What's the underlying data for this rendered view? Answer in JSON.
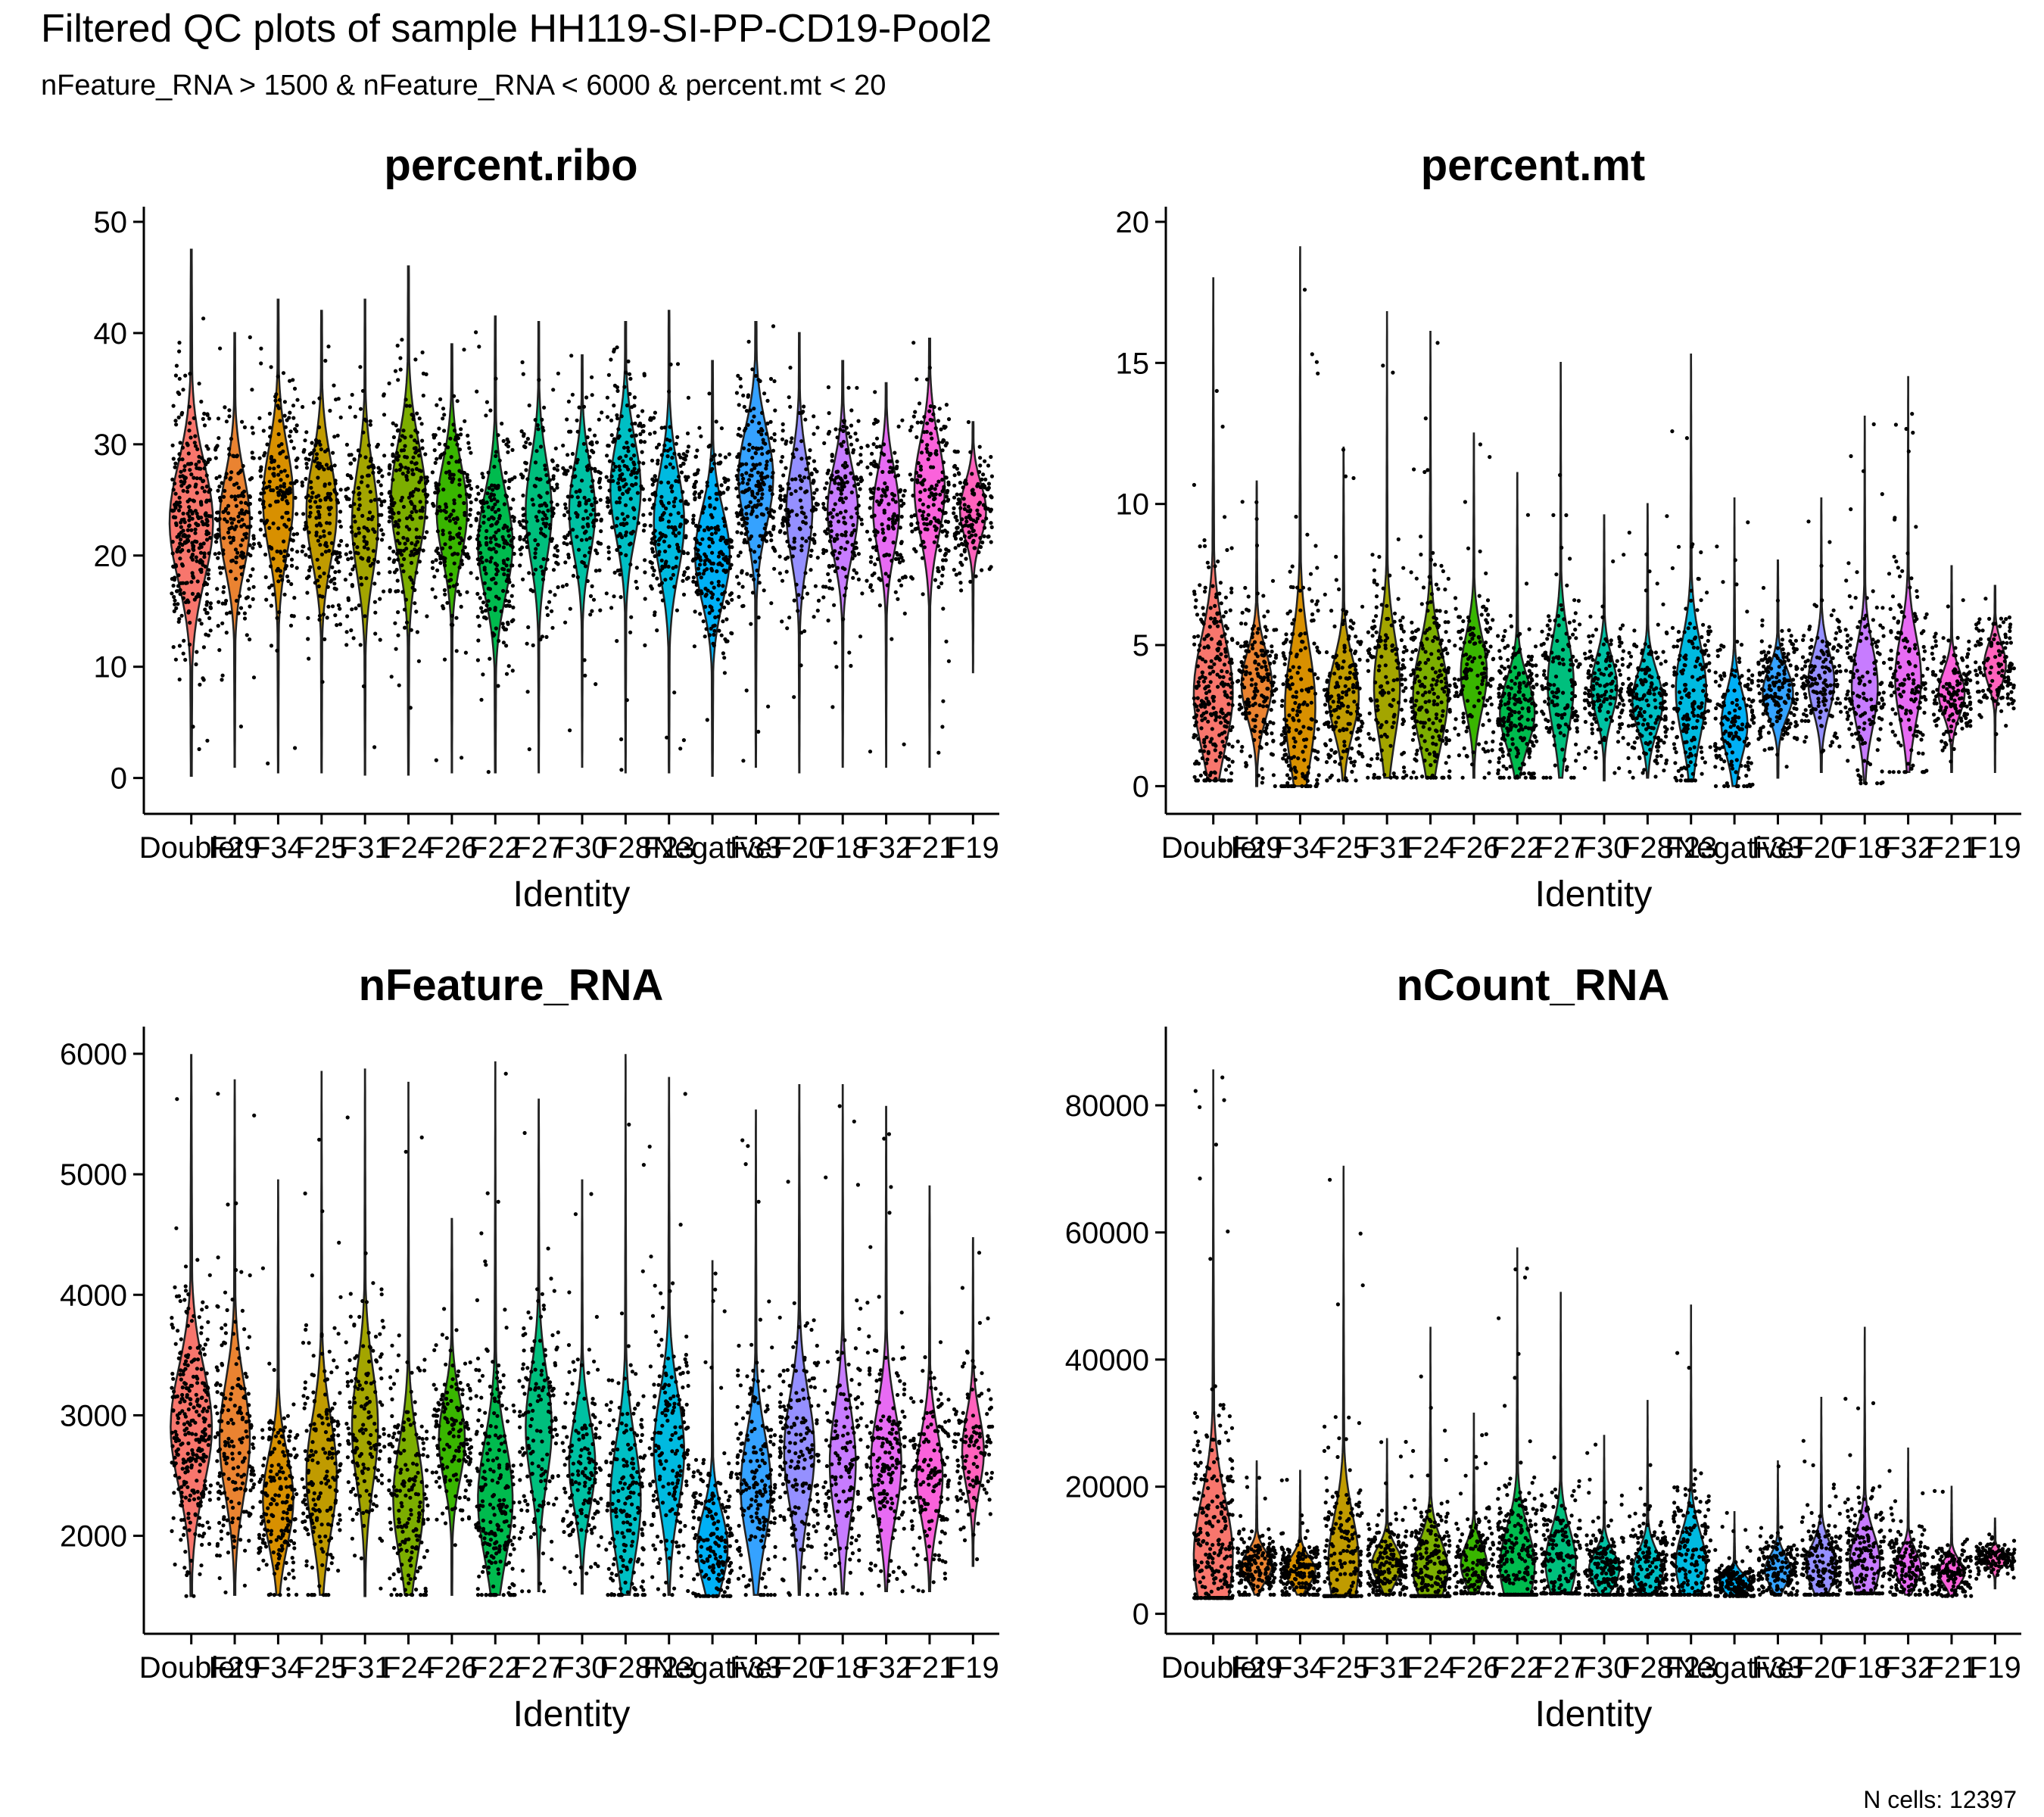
{
  "header": {
    "title": "Filtered QC plots of sample HH119-SI-PP-CD19-Pool2",
    "subtitle": "nFeature_RNA > 1500 & nFeature_RNA < 6000 & percent.mt < 20"
  },
  "footer": {
    "note": "N cells: 12397"
  },
  "colors": [
    "#F8766D",
    "#EA8331",
    "#D89000",
    "#C09B00",
    "#A3A500",
    "#7CAE00",
    "#39B600",
    "#00BB4E",
    "#00BF7D",
    "#00C1A3",
    "#00BFC4",
    "#00BAE0",
    "#00B0F6",
    "#35A2FF",
    "#9590FF",
    "#C77CFF",
    "#E76BF3",
    "#FA62DB",
    "#FF62BC"
  ],
  "chart_data": [
    {
      "type": "violin",
      "title": "percent.ribo",
      "xlabel": "Identity",
      "ylabel": "",
      "ylim": [
        -2,
        50
      ],
      "yticks": [
        0,
        10,
        20,
        30,
        40,
        50
      ],
      "categories": [
        "Doublet",
        "F29",
        "F34",
        "F25",
        "F31",
        "F24",
        "F26",
        "F22",
        "F27",
        "F30",
        "F28",
        "F23",
        "Negative",
        "F33",
        "F20",
        "F18",
        "F32",
        "F21",
        "F19"
      ],
      "series": [
        {
          "min": 0.2,
          "max": 47.5,
          "median": 23,
          "width": 1.0
        },
        {
          "min": 1.0,
          "max": 40.0,
          "median": 23,
          "width": 0.7
        },
        {
          "min": 0.5,
          "max": 43.0,
          "median": 25,
          "width": 0.7
        },
        {
          "min": 0.5,
          "max": 42.0,
          "median": 24,
          "width": 0.7
        },
        {
          "min": 0.3,
          "max": 43.0,
          "median": 23,
          "width": 0.6
        },
        {
          "min": 0.3,
          "max": 46.0,
          "median": 25,
          "width": 0.8
        },
        {
          "min": 0.5,
          "max": 39.0,
          "median": 24,
          "width": 0.7
        },
        {
          "min": 0.5,
          "max": 41.5,
          "median": 21,
          "width": 0.8
        },
        {
          "min": 0.5,
          "max": 41.0,
          "median": 24,
          "width": 0.6
        },
        {
          "min": 1.0,
          "max": 38.0,
          "median": 24,
          "width": 0.6
        },
        {
          "min": 0.5,
          "max": 41.0,
          "median": 26,
          "width": 0.7
        },
        {
          "min": 0.5,
          "max": 42.0,
          "median": 23,
          "width": 0.7
        },
        {
          "min": 0.2,
          "max": 37.5,
          "median": 20,
          "width": 0.8
        },
        {
          "min": 1.0,
          "max": 41.0,
          "median": 27,
          "width": 0.8
        },
        {
          "min": 0.5,
          "max": 40.0,
          "median": 24,
          "width": 0.6
        },
        {
          "min": 1.0,
          "max": 37.5,
          "median": 24,
          "width": 0.7
        },
        {
          "min": 1.0,
          "max": 35.5,
          "median": 24,
          "width": 0.6
        },
        {
          "min": 1.0,
          "max": 39.5,
          "median": 26,
          "width": 0.7
        },
        {
          "min": 9.5,
          "max": 32.0,
          "median": 24,
          "width": 0.6
        }
      ]
    },
    {
      "type": "violin",
      "title": "percent.mt",
      "xlabel": "Identity",
      "ylabel": "",
      "ylim": [
        -0.5,
        20
      ],
      "yticks": [
        0,
        5,
        10,
        15,
        20
      ],
      "categories": [
        "Doublet",
        "F29",
        "F34",
        "F25",
        "F31",
        "F24",
        "F26",
        "F22",
        "F27",
        "F30",
        "F28",
        "F23",
        "Negative",
        "F33",
        "F20",
        "F18",
        "F32",
        "F21",
        "F19"
      ],
      "series": [
        {
          "min": 0.2,
          "max": 18.0,
          "median": 3.3,
          "width": 0.9
        },
        {
          "min": 0.0,
          "max": 10.8,
          "median": 3.6,
          "width": 0.7
        },
        {
          "min": 0.0,
          "max": 19.1,
          "median": 2.8,
          "width": 0.7
        },
        {
          "min": 0.2,
          "max": 12.0,
          "median": 3.2,
          "width": 0.7
        },
        {
          "min": 0.3,
          "max": 16.8,
          "median": 3.5,
          "width": 0.6
        },
        {
          "min": 0.3,
          "max": 16.1,
          "median": 3.2,
          "width": 0.8
        },
        {
          "min": 0.3,
          "max": 12.5,
          "median": 4.0,
          "width": 0.6
        },
        {
          "min": 0.3,
          "max": 11.1,
          "median": 2.6,
          "width": 0.8
        },
        {
          "min": 0.3,
          "max": 15.0,
          "median": 3.6,
          "width": 0.6
        },
        {
          "min": 0.2,
          "max": 9.6,
          "median": 3.5,
          "width": 0.6
        },
        {
          "min": 0.3,
          "max": 10.0,
          "median": 3.0,
          "width": 0.7
        },
        {
          "min": 0.2,
          "max": 15.3,
          "median": 3.4,
          "width": 0.7
        },
        {
          "min": 0.0,
          "max": 10.2,
          "median": 2.2,
          "width": 0.6
        },
        {
          "min": 0.3,
          "max": 8.0,
          "median": 3.3,
          "width": 0.7
        },
        {
          "min": 0.5,
          "max": 10.2,
          "median": 3.7,
          "width": 0.6
        },
        {
          "min": 0.1,
          "max": 13.1,
          "median": 3.5,
          "width": 0.6
        },
        {
          "min": 0.5,
          "max": 14.5,
          "median": 3.8,
          "width": 0.6
        },
        {
          "min": 0.5,
          "max": 7.8,
          "median": 3.3,
          "width": 0.6
        },
        {
          "min": 0.5,
          "max": 7.1,
          "median": 4.3,
          "width": 0.5
        }
      ]
    },
    {
      "type": "violin",
      "title": "nFeature_RNA",
      "xlabel": "Identity",
      "ylabel": "",
      "ylim": [
        1300,
        6100
      ],
      "yticks": [
        2000,
        3000,
        4000,
        5000,
        6000
      ],
      "categories": [
        "Doublet",
        "F29",
        "F34",
        "F25",
        "F31",
        "F24",
        "F26",
        "F22",
        "F27",
        "F30",
        "F28",
        "F23",
        "Negative",
        "F33",
        "F20",
        "F18",
        "F32",
        "F21",
        "F19"
      ],
      "series": [
        {
          "min": 1500,
          "max": 5990,
          "median": 2900,
          "width": 0.95
        },
        {
          "min": 1510,
          "max": 5780,
          "median": 2800,
          "width": 0.7
        },
        {
          "min": 1510,
          "max": 4950,
          "median": 2300,
          "width": 0.7
        },
        {
          "min": 1510,
          "max": 5850,
          "median": 2500,
          "width": 0.7
        },
        {
          "min": 1500,
          "max": 5870,
          "median": 2900,
          "width": 0.6
        },
        {
          "min": 1510,
          "max": 5760,
          "median": 2300,
          "width": 0.7
        },
        {
          "min": 1510,
          "max": 4630,
          "median": 2800,
          "width": 0.6
        },
        {
          "min": 1510,
          "max": 5930,
          "median": 2300,
          "width": 0.8
        },
        {
          "min": 1540,
          "max": 5620,
          "median": 2900,
          "width": 0.6
        },
        {
          "min": 1520,
          "max": 4950,
          "median": 2600,
          "width": 0.6
        },
        {
          "min": 1510,
          "max": 5990,
          "median": 2300,
          "width": 0.7
        },
        {
          "min": 1510,
          "max": 5800,
          "median": 2700,
          "width": 0.7
        },
        {
          "min": 1500,
          "max": 4280,
          "median": 1900,
          "width": 0.7
        },
        {
          "min": 1510,
          "max": 5530,
          "median": 2400,
          "width": 0.7
        },
        {
          "min": 1510,
          "max": 5740,
          "median": 2700,
          "width": 0.7
        },
        {
          "min": 1520,
          "max": 5740,
          "median": 2600,
          "width": 0.6
        },
        {
          "min": 1540,
          "max": 5560,
          "median": 2600,
          "width": 0.7
        },
        {
          "min": 1540,
          "max": 4900,
          "median": 2500,
          "width": 0.6
        },
        {
          "min": 1750,
          "max": 4470,
          "median": 2700,
          "width": 0.5
        }
      ]
    },
    {
      "type": "violin",
      "title": "nCount_RNA",
      "xlabel": "Identity",
      "ylabel": "",
      "ylim": [
        -1000,
        90000
      ],
      "yticks": [
        0,
        20000,
        40000,
        60000,
        80000
      ],
      "categories": [
        "Doublet",
        "F29",
        "F34",
        "F25",
        "F31",
        "F24",
        "F26",
        "F22",
        "F27",
        "F30",
        "F28",
        "F23",
        "Negative",
        "F33",
        "F20",
        "F18",
        "F32",
        "F21",
        "F19"
      ],
      "series": [
        {
          "min": 2500,
          "max": 85500,
          "median": 9000,
          "width": 0.9
        },
        {
          "min": 3000,
          "max": 24000,
          "median": 7500,
          "width": 0.7
        },
        {
          "min": 3000,
          "max": 22500,
          "median": 6800,
          "width": 0.7
        },
        {
          "min": 2800,
          "max": 70500,
          "median": 8000,
          "width": 0.7
        },
        {
          "min": 3000,
          "max": 27500,
          "median": 7800,
          "width": 0.7
        },
        {
          "min": 2800,
          "max": 45000,
          "median": 7000,
          "width": 0.8
        },
        {
          "min": 3200,
          "max": 31500,
          "median": 7800,
          "width": 0.6
        },
        {
          "min": 3000,
          "max": 57500,
          "median": 7500,
          "width": 0.8
        },
        {
          "min": 3200,
          "max": 50500,
          "median": 8000,
          "width": 0.7
        },
        {
          "min": 3000,
          "max": 28000,
          "median": 7000,
          "width": 0.7
        },
        {
          "min": 3000,
          "max": 33500,
          "median": 6500,
          "width": 0.7
        },
        {
          "min": 3000,
          "max": 48500,
          "median": 7800,
          "width": 0.7
        },
        {
          "min": 2800,
          "max": 16000,
          "median": 4800,
          "width": 0.7
        },
        {
          "min": 3000,
          "max": 24000,
          "median": 6800,
          "width": 0.6
        },
        {
          "min": 3000,
          "max": 34000,
          "median": 7500,
          "width": 0.7
        },
        {
          "min": 3200,
          "max": 45000,
          "median": 8000,
          "width": 0.7
        },
        {
          "min": 3000,
          "max": 26000,
          "median": 7300,
          "width": 0.6
        },
        {
          "min": 2800,
          "max": 20000,
          "median": 6500,
          "width": 0.6
        },
        {
          "min": 4000,
          "max": 15000,
          "median": 8500,
          "width": 0.5
        }
      ]
    }
  ]
}
